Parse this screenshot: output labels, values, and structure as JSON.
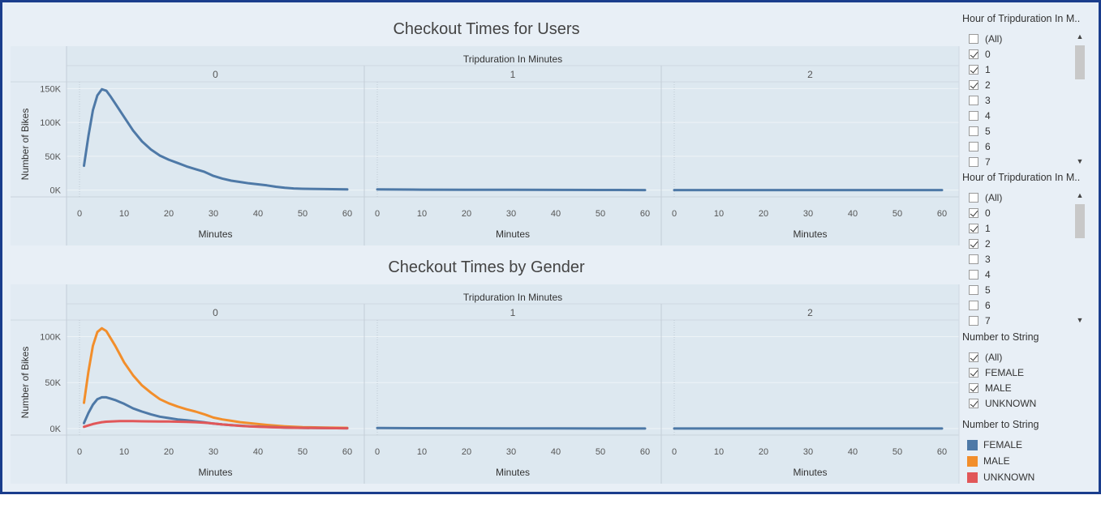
{
  "charts": {
    "top_title": "Checkout Times for Users",
    "bottom_title": "Checkout Times by Gender",
    "column_header": "Tripduration In Minutes",
    "panels": [
      "0",
      "1",
      "2"
    ],
    "xlabel": "Minutes",
    "ylabel": "Number of Bikes"
  },
  "sidebar": {
    "filter1": {
      "title": "Hour of Tripduration In M..",
      "items": [
        {
          "label": "(All)",
          "checked": false
        },
        {
          "label": "0",
          "checked": true
        },
        {
          "label": "1",
          "checked": true
        },
        {
          "label": "2",
          "checked": true
        },
        {
          "label": "3",
          "checked": false
        },
        {
          "label": "4",
          "checked": false
        },
        {
          "label": "5",
          "checked": false
        },
        {
          "label": "6",
          "checked": false
        },
        {
          "label": "7",
          "checked": false
        }
      ]
    },
    "filter2": {
      "title": "Hour of Tripduration In M..",
      "items": [
        {
          "label": "(All)",
          "checked": false
        },
        {
          "label": "0",
          "checked": true
        },
        {
          "label": "1",
          "checked": true
        },
        {
          "label": "2",
          "checked": true
        },
        {
          "label": "3",
          "checked": false
        },
        {
          "label": "4",
          "checked": false
        },
        {
          "label": "5",
          "checked": false
        },
        {
          "label": "6",
          "checked": false
        },
        {
          "label": "7",
          "checked": false
        }
      ]
    },
    "filter3": {
      "title": "Number to String",
      "items": [
        {
          "label": "(All)",
          "checked": true
        },
        {
          "label": "FEMALE",
          "checked": true
        },
        {
          "label": "MALE",
          "checked": true
        },
        {
          "label": "UNKNOWN",
          "checked": true
        }
      ]
    },
    "legend": {
      "title": "Number to String",
      "items": [
        {
          "label": "FEMALE",
          "color": "#4e79a7"
        },
        {
          "label": "MALE",
          "color": "#f28e2b"
        },
        {
          "label": "UNKNOWN",
          "color": "#e15759"
        }
      ]
    }
  },
  "chart_data": [
    {
      "type": "line",
      "title": "Checkout Times for Users",
      "column_header": "Tripduration In Minutes",
      "panels": [
        "0",
        "1",
        "2"
      ],
      "xlabel": "Minutes",
      "ylabel": "Number of Bikes",
      "xlim": [
        0,
        60
      ],
      "xticks": [
        0,
        10,
        20,
        30,
        40,
        50,
        60
      ],
      "ylim": [
        -10000,
        160000
      ],
      "yticks": [
        0,
        50000,
        100000,
        150000
      ],
      "ytick_labels": [
        "0K",
        "50K",
        "100K",
        "150K"
      ],
      "series": [
        {
          "panel": "0",
          "color": "#4e79a7",
          "x": [
            1,
            2,
            3,
            4,
            5,
            6,
            7,
            8,
            9,
            10,
            12,
            14,
            16,
            18,
            20,
            22,
            24,
            26,
            28,
            30,
            32,
            34,
            36,
            38,
            40,
            42,
            44,
            46,
            48,
            50,
            55,
            60
          ],
          "y": [
            36000,
            80000,
            118000,
            140000,
            149000,
            147000,
            138000,
            128000,
            118000,
            108000,
            88000,
            72000,
            60000,
            51000,
            45000,
            40000,
            35000,
            31000,
            27000,
            21000,
            17000,
            14000,
            12000,
            10000,
            8500,
            7000,
            5000,
            3500,
            2500,
            2000,
            1500,
            1000
          ]
        },
        {
          "panel": "1",
          "color": "#4e79a7",
          "x": [
            0,
            10,
            20,
            30,
            40,
            50,
            60
          ],
          "y": [
            1000,
            700,
            500,
            400,
            300,
            200,
            100
          ]
        },
        {
          "panel": "2",
          "color": "#4e79a7",
          "x": [
            0,
            10,
            20,
            30,
            40,
            50,
            60
          ],
          "y": [
            100,
            100,
            100,
            100,
            100,
            100,
            100
          ]
        }
      ]
    },
    {
      "type": "line",
      "title": "Checkout Times by Gender",
      "column_header": "Tripduration In Minutes",
      "panels": [
        "0",
        "1",
        "2"
      ],
      "xlabel": "Minutes",
      "ylabel": "Number of Bikes",
      "xlim": [
        0,
        60
      ],
      "xticks": [
        0,
        10,
        20,
        30,
        40,
        50,
        60
      ],
      "ylim": [
        -7000,
        118000
      ],
      "yticks": [
        0,
        50000,
        100000
      ],
      "ytick_labels": [
        "0K",
        "50K",
        "100K"
      ],
      "series": [
        {
          "name": "MALE",
          "panel": "0",
          "color": "#f28e2b",
          "x": [
            1,
            2,
            3,
            4,
            5,
            6,
            7,
            8,
            9,
            10,
            12,
            14,
            16,
            18,
            20,
            22,
            24,
            26,
            28,
            30,
            32,
            34,
            36,
            38,
            40,
            42,
            44,
            46,
            48,
            50,
            55,
            60
          ],
          "y": [
            28000,
            62000,
            90000,
            105000,
            109000,
            106000,
            98000,
            90000,
            81000,
            72000,
            58000,
            47000,
            39000,
            32000,
            27500,
            24000,
            21000,
            18500,
            15500,
            12000,
            10000,
            8500,
            7000,
            6000,
            5000,
            4000,
            3200,
            2500,
            2000,
            1500,
            1200,
            800
          ]
        },
        {
          "name": "FEMALE",
          "panel": "0",
          "color": "#4e79a7",
          "x": [
            1,
            2,
            3,
            4,
            5,
            6,
            7,
            8,
            9,
            10,
            12,
            14,
            16,
            18,
            20,
            22,
            24,
            26,
            28,
            30,
            32,
            34,
            36,
            38,
            40,
            42,
            44,
            46,
            48,
            50,
            55,
            60
          ],
          "y": [
            6000,
            17000,
            26000,
            32000,
            34000,
            34000,
            32500,
            31000,
            29000,
            27000,
            22000,
            18500,
            15500,
            13000,
            11500,
            10000,
            9000,
            8000,
            6800,
            5500,
            4500,
            3800,
            3200,
            2600,
            2200,
            1800,
            1500,
            1200,
            1000,
            800,
            600,
            400
          ]
        },
        {
          "name": "UNKNOWN",
          "panel": "0",
          "color": "#e15759",
          "x": [
            1,
            2,
            3,
            4,
            5,
            6,
            7,
            8,
            9,
            10,
            12,
            14,
            16,
            18,
            20,
            22,
            24,
            26,
            28,
            30,
            32,
            34,
            36,
            38,
            40,
            42,
            44,
            46,
            48,
            50,
            55,
            60
          ],
          "y": [
            2000,
            3500,
            5000,
            6000,
            7000,
            7500,
            7800,
            8000,
            8100,
            8200,
            8100,
            8000,
            7900,
            7800,
            7700,
            7500,
            7300,
            7000,
            6500,
            5500,
            4500,
            3800,
            3000,
            2500,
            2000,
            1700,
            1400,
            1100,
            900,
            800,
            600,
            400
          ]
        },
        {
          "name": "FEMALE",
          "panel": "1",
          "color": "#4e79a7",
          "x": [
            0,
            10,
            20,
            30,
            40,
            50,
            60
          ],
          "y": [
            700,
            500,
            400,
            300,
            200,
            150,
            100
          ]
        },
        {
          "name": "FEMALE",
          "panel": "2",
          "color": "#4e79a7",
          "x": [
            0,
            10,
            20,
            30,
            40,
            50,
            60
          ],
          "y": [
            100,
            100,
            100,
            100,
            100,
            100,
            100
          ]
        }
      ]
    }
  ]
}
